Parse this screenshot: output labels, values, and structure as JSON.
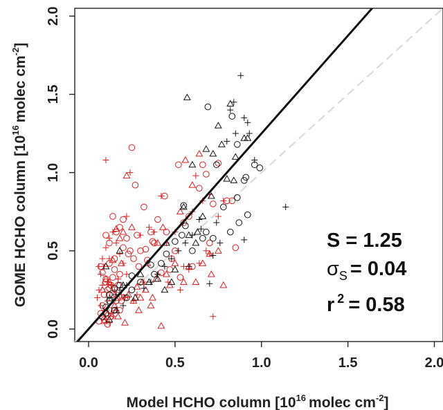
{
  "chart_data": {
    "type": "scatter",
    "title": "",
    "xlabel": {
      "main": "Model HCHO column  [10",
      "exp": "16",
      "unit": "molec cm",
      "unit_exp": "-2",
      "close": "]"
    },
    "ylabel": {
      "main": "GOME HCHO column  [10",
      "exp": "16",
      "unit": "molec cm",
      "unit_exp": "-2",
      "close": "]"
    },
    "xlim": [
      -0.08,
      2.05
    ],
    "ylim": [
      -0.08,
      2.05
    ],
    "xticks": [
      "0.0",
      "0.5",
      "1.0",
      "1.5",
      "2.0"
    ],
    "yticks": [
      "0.0",
      "0.5",
      "1.0",
      "1.5",
      "2.0"
    ],
    "fit_line": {
      "slope": 1.25,
      "intercept": 0.0,
      "color": "#111111"
    },
    "one_to_one_line": {
      "slope": 1.0,
      "color": "#d9d9d9",
      "style": "dashed"
    },
    "stats": {
      "S": "S = 1.25",
      "sigma_symbol": "σ",
      "sigma_sub": "S",
      "sigma_value": "= 0.04",
      "r2_prefix": "r",
      "r2_exp": "2",
      "r2_value": "= 0.58"
    },
    "colors": {
      "red": "#d42020",
      "black": "#111111"
    },
    "series": [
      {
        "marker": "circle",
        "color": "red",
        "x": [
          0.25,
          0.27,
          0.32,
          0.33,
          0.36,
          0.38,
          0.4,
          0.44,
          0.45,
          0.48,
          0.5,
          0.52,
          0.55,
          0.58,
          0.6,
          0.64,
          0.66,
          0.68,
          0.7,
          0.72,
          0.75,
          0.8,
          0.83,
          0.85,
          0.1,
          0.12,
          0.14,
          0.15,
          0.16,
          0.18,
          0.2,
          0.2,
          0.22,
          0.24,
          0.26,
          0.28,
          0.3,
          0.12,
          0.15,
          0.18,
          0.1,
          0.11,
          0.13,
          0.14,
          0.16,
          0.17,
          0.19,
          0.21,
          0.08,
          0.09,
          0.1,
          0.12,
          0.13,
          0.06,
          0.07,
          0.09,
          0.11,
          0.23,
          0.29,
          0.34,
          0.37,
          0.42,
          0.47,
          0.53,
          0.07,
          0.08,
          0.1,
          0.12,
          0.14,
          0.16,
          0.18
        ],
        "y": [
          1.16,
          0.92,
          0.78,
          0.51,
          0.62,
          0.55,
          0.7,
          0.85,
          0.62,
          0.45,
          0.5,
          1.05,
          0.68,
          0.72,
          0.4,
          0.9,
          1.05,
          0.99,
          0.55,
          0.8,
          1.06,
          0.82,
          0.82,
          0.52,
          0.6,
          0.55,
          0.72,
          0.45,
          0.62,
          0.65,
          0.7,
          0.52,
          0.58,
          0.5,
          0.45,
          0.6,
          0.5,
          0.42,
          0.38,
          0.35,
          0.3,
          0.25,
          0.28,
          0.33,
          0.22,
          0.28,
          0.18,
          0.2,
          0.15,
          0.22,
          0.1,
          0.12,
          0.08,
          0.05,
          0.1,
          0.06,
          0.03,
          0.48,
          0.4,
          0.44,
          0.56,
          0.36,
          0.38,
          0.33,
          0.4,
          0.36,
          0.32,
          0.26,
          0.22,
          0.18,
          0.12
        ]
      },
      {
        "marker": "plus",
        "color": "red",
        "x": [
          0.1,
          0.12,
          0.22,
          0.24,
          0.3,
          0.35,
          0.38,
          0.42,
          0.45,
          0.5,
          0.55,
          0.6,
          0.62,
          0.66,
          0.7,
          0.72,
          0.75,
          0.78,
          0.06,
          0.08,
          0.1,
          0.12,
          0.14,
          0.16,
          0.18,
          0.2,
          0.22,
          0.07,
          0.09,
          0.11,
          0.13,
          0.15,
          0.17,
          0.19,
          0.21,
          0.26,
          0.28,
          0.32,
          0.4,
          0.46,
          0.53,
          0.58,
          0.64,
          0.68,
          0.7,
          0.05,
          0.07,
          0.09,
          0.11,
          0.13,
          0.06,
          0.08,
          0.1,
          0.12,
          0.14,
          0.16
        ],
        "y": [
          1.08,
          0.45,
          0.72,
          1.0,
          0.6,
          0.65,
          0.62,
          0.85,
          0.55,
          0.62,
          0.4,
          0.75,
          0.98,
          0.82,
          0.86,
          0.08,
          0.72,
          0.82,
          0.4,
          0.45,
          0.52,
          0.58,
          0.62,
          0.55,
          0.48,
          0.42,
          0.35,
          0.35,
          0.4,
          0.3,
          0.28,
          0.25,
          0.32,
          0.22,
          0.2,
          0.18,
          0.22,
          0.3,
          0.35,
          0.3,
          0.25,
          0.38,
          0.42,
          0.5,
          0.48,
          0.2,
          0.15,
          0.12,
          0.18,
          0.1,
          0.25,
          0.28,
          0.06,
          0.04,
          0.08,
          0.12
        ]
      },
      {
        "marker": "triangle",
        "color": "red",
        "x": [
          0.17,
          0.19,
          0.22,
          0.25,
          0.29,
          0.31,
          0.34,
          0.4,
          0.43,
          0.47,
          0.53,
          0.58,
          0.64,
          0.7,
          0.71,
          0.75,
          0.78,
          0.6,
          0.56,
          0.42,
          0.08,
          0.1,
          0.12,
          0.14,
          0.16,
          0.18,
          0.2,
          0.23,
          0.26,
          0.28,
          0.37,
          0.45,
          0.5,
          0.55,
          0.62,
          0.66,
          0.3,
          0.33,
          0.36,
          0.39,
          0.09,
          0.11,
          0.15,
          0.17,
          0.21
        ],
        "y": [
          0.2,
          0.42,
          0.98,
          0.65,
          0.12,
          0.3,
          0.42,
          0.55,
          0.65,
          0.28,
          0.75,
          0.4,
          1.12,
          0.48,
          0.35,
          0.5,
          0.28,
          0.92,
          1.08,
          0.02,
          0.25,
          0.32,
          0.3,
          0.44,
          0.64,
          0.58,
          0.62,
          0.22,
          0.18,
          0.27,
          0.2,
          0.35,
          0.42,
          0.3,
          0.3,
          0.42,
          0.2,
          0.25,
          0.15,
          0.32,
          0.05,
          0.1,
          0.15,
          0.08,
          0.04
        ]
      },
      {
        "marker": "circle",
        "color": "black",
        "x": [
          0.69,
          0.83,
          0.86,
          0.91,
          0.92,
          0.86,
          0.78,
          0.74,
          0.82,
          0.9,
          0.99,
          0.87,
          0.96,
          0.66,
          0.6,
          0.68,
          0.72,
          0.56,
          0.54,
          0.5,
          0.45,
          0.42,
          0.38,
          0.3,
          0.25,
          0.12,
          0.15,
          0.18,
          0.08,
          0.1,
          0.1,
          0.12,
          0.15,
          0.22,
          0.25,
          0.36,
          0.55
        ],
        "y": [
          1.42,
          1.36,
          1.18,
          0.97,
          0.73,
          0.84,
          0.78,
          1.05,
          0.62,
          0.95,
          1.03,
          0.68,
          1.05,
          0.58,
          0.5,
          0.62,
          0.58,
          0.66,
          0.6,
          0.56,
          0.48,
          0.42,
          0.35,
          0.3,
          0.25,
          0.22,
          0.26,
          0.28,
          0.08,
          0.1,
          0.14,
          0.18,
          0.12,
          0.2,
          0.34,
          0.41,
          0.79
        ]
      },
      {
        "marker": "plus",
        "color": "black",
        "x": [
          0.88,
          0.84,
          0.82,
          0.92,
          0.85,
          0.9,
          0.93,
          0.96,
          1.14,
          0.8,
          0.74,
          0.76,
          0.7,
          0.64,
          0.6,
          0.56,
          0.52,
          0.48,
          0.44,
          0.4,
          0.36,
          0.32,
          0.9,
          0.72,
          0.65,
          0.58,
          0.2,
          0.22,
          0.12,
          0.14,
          0.16,
          0.18
        ],
        "y": [
          1.62,
          1.45,
          1.4,
          1.32,
          1.25,
          1.35,
          1.25,
          1.08,
          0.78,
          1.2,
          0.68,
          0.55,
          0.29,
          0.7,
          0.6,
          0.55,
          0.5,
          0.45,
          0.4,
          0.35,
          0.3,
          0.26,
          0.57,
          0.47,
          0.64,
          0.4,
          0.15,
          0.28,
          0.2,
          0.18,
          0.22,
          0.25
        ]
      },
      {
        "marker": "triangle",
        "color": "black",
        "x": [
          0.57,
          0.82,
          0.85,
          0.75,
          0.72,
          0.68,
          0.77,
          0.8,
          0.84,
          0.9,
          0.92,
          0.6,
          0.55,
          0.63,
          0.66,
          0.5,
          0.45,
          0.4,
          0.35,
          0.27,
          0.18,
          0.58,
          0.62,
          0.71,
          0.48,
          0.44,
          0.3,
          0.2,
          0.16,
          0.1,
          0.12
        ],
        "y": [
          1.48,
          1.44,
          1.1,
          1.3,
          1.12,
          1.15,
          1.18,
          0.96,
          0.95,
          1.22,
          1.22,
          1.05,
          0.78,
          0.62,
          0.72,
          0.38,
          0.55,
          0.32,
          0.3,
          0.2,
          0.5,
          0.6,
          0.55,
          0.85,
          0.3,
          0.25,
          0.35,
          0.28,
          0.12,
          0.4,
          0.06
        ]
      }
    ]
  }
}
